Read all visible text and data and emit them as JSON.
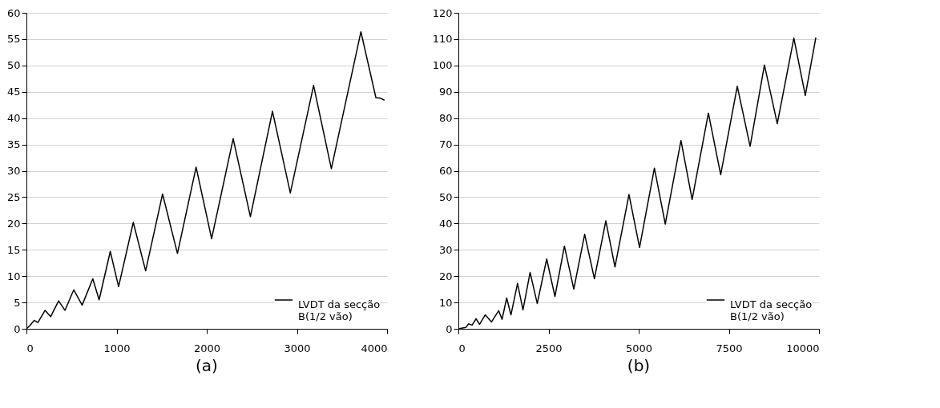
{
  "chart_data": [
    {
      "type": "line",
      "title": "(a)",
      "legend": "bottom right",
      "grid": "y",
      "marker": "none",
      "line_style": "solid",
      "xlim": [
        0,
        4000
      ],
      "xticks": [
        0,
        1000,
        2000,
        3000,
        4000
      ],
      "ylim": [
        0,
        60
      ],
      "yticks": [
        0,
        5,
        10,
        15,
        20,
        25,
        30,
        35,
        40,
        45,
        50,
        55,
        60
      ],
      "series": [
        {
          "name": "LVDT da secção B(1/2 vão)",
          "color": "#000000",
          "x": [
            0,
            38,
            86,
            127,
            207,
            268,
            357,
            427,
            525,
            618,
            736,
            806,
            930,
            1022,
            1185,
            1322,
            1510,
            1675,
            1882,
            2054,
            2293,
            2484,
            2729,
            2927,
            3185,
            3382,
            3710,
            3876,
            3924,
            3971
          ],
          "values": [
            0,
            0.6,
            1.6,
            1.2,
            3.5,
            2.3,
            5.3,
            3.5,
            7.4,
            4.5,
            9.5,
            5.5,
            14.7,
            8.0,
            20.2,
            11.0,
            25.6,
            14.3,
            30.7,
            17.1,
            36.1,
            21.3,
            41.3,
            25.8,
            46.2,
            30.4,
            56.4,
            43.9,
            43.8,
            43.4
          ]
        }
      ]
    },
    {
      "type": "line",
      "title": "(b)",
      "legend": "bottom right",
      "grid": "y",
      "marker": "none",
      "line_style": "solid",
      "xlim": [
        0,
        10000
      ],
      "xticks": [
        0,
        2500,
        5000,
        7500,
        10000
      ],
      "ylim": [
        0,
        120
      ],
      "yticks": [
        0,
        10,
        20,
        30,
        40,
        50,
        60,
        70,
        80,
        90,
        100,
        110,
        120
      ],
      "series": [
        {
          "name": "LVDT da secção B(1/2 vão)",
          "color": "#000000",
          "x": [
            0,
            206,
            285,
            380,
            491,
            586,
            745,
            919,
            1117,
            1212,
            1339,
            1458,
            1640,
            1791,
            1989,
            2187,
            2449,
            2678,
            2940,
            3201,
            3502,
            3772,
            4089,
            4342,
            4731,
            5024,
            5436,
            5737,
            6173,
            6482,
            6933,
            7274,
            7734,
            8090,
            8487,
            8843,
            9303,
            9620,
            9913
          ],
          "values": [
            0,
            0.5,
            1.9,
            1.4,
            3.8,
            1.7,
            5.3,
            2.6,
            6.9,
            3.6,
            11.7,
            5.3,
            17.2,
            7.2,
            21.4,
            9.6,
            26.5,
            12.3,
            31.4,
            15.1,
            35.9,
            19.0,
            41.0,
            23.5,
            51.0,
            30.9,
            61.0,
            39.8,
            71.5,
            49.1,
            81.9,
            58.5,
            92.1,
            69.3,
            100.2,
            77.9,
            110.4,
            88.6,
            110.6
          ]
        }
      ]
    }
  ]
}
